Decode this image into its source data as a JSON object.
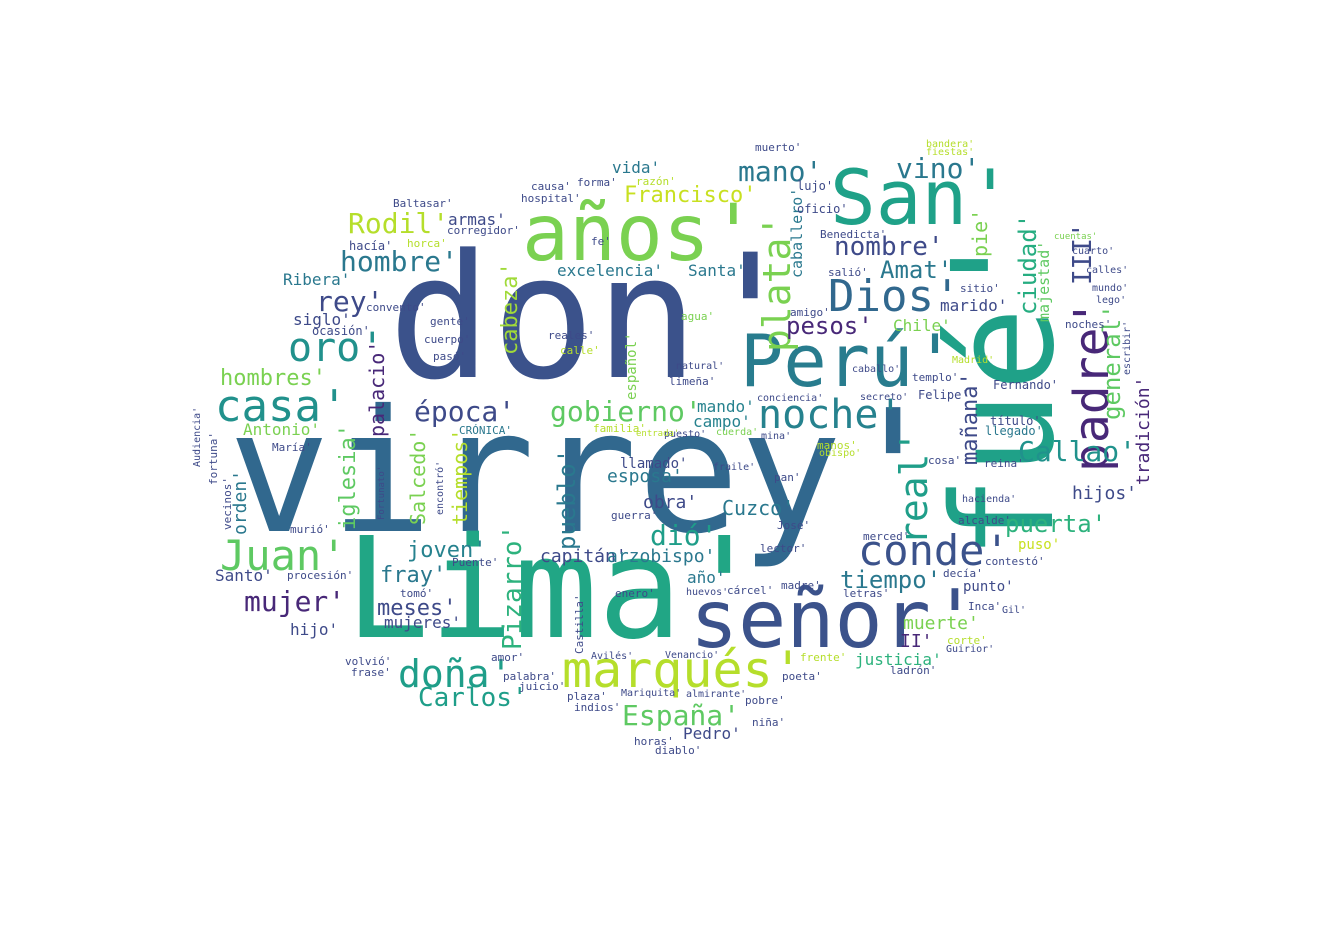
{
  "words": [
    {
      "text": "don'",
      "color": "#3b528b"
    },
    {
      "text": "virrey'",
      "color": "#31688e"
    },
    {
      "text": "Lima'",
      "color": "#21a685"
    },
    {
      "text": "fué'",
      "color": "#1fa188"
    },
    {
      "text": "señor'",
      "color": "#3b528b"
    },
    {
      "text": "San'",
      "color": "#1fa188"
    },
    {
      "text": "años'",
      "color": "#7ad151"
    },
    {
      "text": "Perú'",
      "color": "#287c8e"
    },
    {
      "text": "marqués'",
      "color": "#b5de2b"
    },
    {
      "text": "conde'",
      "color": "#3b528b"
    },
    {
      "text": "Juan'",
      "color": "#5ec962"
    },
    {
      "text": "casa'",
      "color": "#21918c"
    },
    {
      "text": "padre'",
      "color": "#482878"
    },
    {
      "text": "Dios'",
      "color": "#31688e"
    },
    {
      "text": "noche'",
      "color": "#26828e"
    },
    {
      "text": "doña'",
      "color": "#1f9e89"
    },
    {
      "text": "oro'",
      "color": "#21918c"
    },
    {
      "text": "plata'",
      "color": "#7ad151"
    },
    {
      "text": "real'",
      "color": "#1f9e89"
    },
    {
      "text": "época'",
      "color": "#3e4a89"
    },
    {
      "text": "gobierno'",
      "color": "#5ec962"
    },
    {
      "text": "Rodil'",
      "color": "#b5de2b"
    },
    {
      "text": "hombre'",
      "color": "#2a788e"
    },
    {
      "text": "mano'",
      "color": "#2a788e"
    },
    {
      "text": "vino'",
      "color": "#2a788e"
    },
    {
      "text": "nombre'",
      "color": "#3e4a89"
    },
    {
      "text": "rey'",
      "color": "#3e4a89"
    },
    {
      "text": "Callao'",
      "color": "#20928c"
    },
    {
      "text": "mujer'",
      "color": "#482878"
    },
    {
      "text": "Carlos'",
      "color": "#1f9e89"
    },
    {
      "text": "España'",
      "color": "#5ec962"
    },
    {
      "text": "Francisco'",
      "color": "#c8e020"
    },
    {
      "text": "III'",
      "color": "#3e4a89"
    },
    {
      "text": "ciudad'",
      "color": "#26ad81"
    },
    {
      "text": "general'",
      "color": "#5ec962"
    },
    {
      "text": "Amat'",
      "color": "#2a788e"
    },
    {
      "text": "pesos'",
      "color": "#482878"
    },
    {
      "text": "hombres'",
      "color": "#7ad151"
    },
    {
      "text": "Pizarro'",
      "color": "#2db27d"
    },
    {
      "text": "dió'",
      "color": "#1f9e89"
    },
    {
      "text": "pueblo'",
      "color": "#2a788e"
    },
    {
      "text": "cabeza'",
      "color": "#a0da39"
    },
    {
      "text": "iglesia'",
      "color": "#5ec962"
    },
    {
      "text": "tiempo'",
      "color": "#2a788e"
    },
    {
      "text": "puerta'",
      "color": "#2db27d"
    },
    {
      "text": "joven'",
      "color": "#26828e"
    },
    {
      "text": "fray'",
      "color": "#2a788e"
    },
    {
      "text": "meses'",
      "color": "#3e4a89"
    },
    {
      "text": "hijos'",
      "color": "#3e4a89"
    },
    {
      "text": "tradición'",
      "color": "#482878"
    },
    {
      "text": "muerte'",
      "color": "#7ad151"
    },
    {
      "text": "mañana'",
      "color": "#3e4a89"
    },
    {
      "text": "tiempos'",
      "color": "#b5de2b"
    },
    {
      "text": "Salcedo'",
      "color": "#7ad151"
    },
    {
      "text": "Cuzco'",
      "color": "#2a788e"
    },
    {
      "text": "palacio'",
      "color": "#482878"
    },
    {
      "text": "capitán'",
      "color": "#3e4a89"
    },
    {
      "text": "arzobispo'",
      "color": "#2a788e"
    },
    {
      "text": "esposa'",
      "color": "#2a788e"
    },
    {
      "text": "obra'",
      "color": "#3e4a89"
    },
    {
      "text": "excelencia'",
      "color": "#2a788e"
    },
    {
      "text": "Santa'",
      "color": "#2a788e"
    },
    {
      "text": "Chile'",
      "color": "#7ad151"
    },
    {
      "text": "caballero'",
      "color": "#2a788e"
    },
    {
      "text": "pie'",
      "color": "#7ad151"
    },
    {
      "text": "majestad'",
      "color": "#5ec962"
    },
    {
      "text": "marido'",
      "color": "#3e4a89"
    },
    {
      "text": "siglo'",
      "color": "#3e4a89"
    },
    {
      "text": "Ribera'",
      "color": "#2a788e"
    },
    {
      "text": "Antonio'",
      "color": "#7ad151"
    },
    {
      "text": "orden'",
      "color": "#2a788e"
    },
    {
      "text": "armas'",
      "color": "#3e4a89"
    },
    {
      "text": "vida'",
      "color": "#2a788e"
    },
    {
      "text": "mando'",
      "color": "#26828e"
    },
    {
      "text": "campo'",
      "color": "#26828e"
    },
    {
      "text": "Pedro'",
      "color": "#3e4a89"
    },
    {
      "text": "año'",
      "color": "#2a788e"
    },
    {
      "text": "justicia'",
      "color": "#2db27d"
    },
    {
      "text": "mujeres'",
      "color": "#3e4a89"
    },
    {
      "text": "hijo'",
      "color": "#3e4a89"
    },
    {
      "text": "Santo'",
      "color": "#3e4a89"
    },
    {
      "text": "puso'",
      "color": "#c8e020"
    },
    {
      "text": "punto'",
      "color": "#3e4a89"
    },
    {
      "text": "II'",
      "color": "#482878"
    },
    {
      "text": "llamado'",
      "color": "#3e4a89"
    },
    {
      "text": "Fernando'",
      "color": "#3e4a89"
    },
    {
      "text": "título'",
      "color": "#3e4a89"
    },
    {
      "text": "llegado'",
      "color": "#2a788e"
    },
    {
      "text": "Felipe'",
      "color": "#3e4a89"
    },
    {
      "text": "español'",
      "color": "#7ad151"
    },
    {
      "text": "lujo'",
      "color": "#3e4a89"
    },
    {
      "text": "oficio'",
      "color": "#3e4a89"
    },
    {
      "text": "muerto'",
      "color": "#3e4a89"
    },
    {
      "text": "hacía'",
      "color": "#3e4a89"
    },
    {
      "text": "corregidor'",
      "color": "#3e4a89"
    },
    {
      "text": "Baltasar'",
      "color": "#3e4a89"
    },
    {
      "text": "causa'",
      "color": "#3e4a89"
    },
    {
      "text": "forma'",
      "color": "#3e4a89"
    },
    {
      "text": "razón'",
      "color": "#b5de2b"
    },
    {
      "text": "hospital'",
      "color": "#3e4a89"
    },
    {
      "text": "fe'",
      "color": "#3e4a89"
    },
    {
      "text": "horca'",
      "color": "#b5de2b"
    },
    {
      "text": "convento'",
      "color": "#3e4a89"
    },
    {
      "text": "ocasión'",
      "color": "#3e4a89"
    },
    {
      "text": "gente'",
      "color": "#3e4a89"
    },
    {
      "text": "cuerpo'",
      "color": "#3e4a89"
    },
    {
      "text": "pasó'",
      "color": "#3e4a89"
    },
    {
      "text": "reales'",
      "color": "#3e4a89"
    },
    {
      "text": "calle'",
      "color": "#b5de2b"
    },
    {
      "text": "agua'",
      "color": "#7ad151"
    },
    {
      "text": "limeña'",
      "color": "#3e4a89"
    },
    {
      "text": "natural'",
      "color": "#3e4a89"
    },
    {
      "text": "familia'",
      "color": "#b5de2b"
    },
    {
      "text": "puesto'",
      "color": "#3e4a89"
    },
    {
      "text": "cuerda'",
      "color": "#7ad151"
    },
    {
      "text": "mina'",
      "color": "#3e4a89"
    },
    {
      "text": "conciencia'",
      "color": "#3e4a89"
    },
    {
      "text": "secreto'",
      "color": "#3e4a89"
    },
    {
      "text": "caballo'",
      "color": "#3e4a89"
    },
    {
      "text": "amigo'",
      "color": "#3e4a89"
    },
    {
      "text": "salió'",
      "color": "#3e4a89"
    },
    {
      "text": "Benedicta'",
      "color": "#3e4a89"
    },
    {
      "text": "sitio'",
      "color": "#3e4a89"
    },
    {
      "text": "noches'",
      "color": "#3e4a89"
    },
    {
      "text": "mundo'",
      "color": "#3e4a89"
    },
    {
      "text": "lego'",
      "color": "#3e4a89"
    },
    {
      "text": "calles'",
      "color": "#3e4a89"
    },
    {
      "text": "cuarto'",
      "color": "#3e4a89"
    },
    {
      "text": "cuentas'",
      "color": "#7ad151"
    },
    {
      "text": "templo'",
      "color": "#3e4a89"
    },
    {
      "text": "cosa'",
      "color": "#3e4a89"
    },
    {
      "text": "reina'",
      "color": "#3e4a89"
    },
    {
      "text": "alcalde'",
      "color": "#3e4a89"
    },
    {
      "text": "merced'",
      "color": "#3e4a89"
    },
    {
      "text": "decía'",
      "color": "#3e4a89"
    },
    {
      "text": "contestó'",
      "color": "#3e4a89"
    },
    {
      "text": "Inca'",
      "color": "#3e4a89"
    },
    {
      "text": "ladrón'",
      "color": "#3e4a89"
    },
    {
      "text": "poeta'",
      "color": "#3e4a89"
    },
    {
      "text": "pobre'",
      "color": "#3e4a89"
    },
    {
      "text": "niña'",
      "color": "#3e4a89"
    },
    {
      "text": "letras'",
      "color": "#3e4a89"
    },
    {
      "text": "madre'",
      "color": "#3e4a89"
    },
    {
      "text": "cárcel'",
      "color": "#3e4a89"
    },
    {
      "text": "lector'",
      "color": "#3e4a89"
    },
    {
      "text": "José'",
      "color": "#3e4a89"
    },
    {
      "text": "pan'",
      "color": "#3e4a89"
    },
    {
      "text": "fraile'",
      "color": "#3e4a89"
    },
    {
      "text": "enero'",
      "color": "#3e4a89"
    },
    {
      "text": "guerra'",
      "color": "#3e4a89"
    },
    {
      "text": "huevos'",
      "color": "#3e4a89"
    },
    {
      "text": "Venancio'",
      "color": "#3e4a89"
    },
    {
      "text": "almirante'",
      "color": "#3e4a89"
    },
    {
      "text": "Mariquita'",
      "color": "#3e4a89"
    },
    {
      "text": "plaza'",
      "color": "#3e4a89"
    },
    {
      "text": "indios'",
      "color": "#3e4a89"
    },
    {
      "text": "horas'",
      "color": "#3e4a89"
    },
    {
      "text": "diablo'",
      "color": "#3e4a89"
    },
    {
      "text": "palabra'",
      "color": "#3e4a89"
    },
    {
      "text": "juicio'",
      "color": "#3e4a89"
    },
    {
      "text": "amor'",
      "color": "#3e4a89"
    },
    {
      "text": "Puente'",
      "color": "#3e4a89"
    },
    {
      "text": "Avilés'",
      "color": "#3e4a89"
    },
    {
      "text": "procesión'",
      "color": "#3e4a89"
    },
    {
      "text": "tomó'",
      "color": "#3e4a89"
    },
    {
      "text": "volvió'",
      "color": "#3e4a89"
    },
    {
      "text": "frase'",
      "color": "#3e4a89"
    },
    {
      "text": "María'",
      "color": "#3e4a89"
    },
    {
      "text": "vecinos'",
      "color": "#3e4a89"
    },
    {
      "text": "fortuna'",
      "color": "#3e4a89"
    },
    {
      "text": "Audiencia'",
      "color": "#3e4a89"
    },
    {
      "text": "murió'",
      "color": "#3e4a89"
    },
    {
      "text": "CRÓNICA'",
      "color": "#2a788e"
    },
    {
      "text": "Gil'",
      "color": "#3e4a89"
    },
    {
      "text": "Guirior'",
      "color": "#3e4a89"
    },
    {
      "text": "hacienda'",
      "color": "#3e4a89"
    },
    {
      "text": "escribir'",
      "color": "#3e4a89"
    },
    {
      "text": "Castilla'",
      "color": "#3e4a89"
    },
    {
      "text": "Fortunato'",
      "color": "#3e4a89"
    },
    {
      "text": "encontró'",
      "color": "#3e4a89"
    },
    {
      "text": "frente'",
      "color": "#b5de2b"
    },
    {
      "text": "corte'",
      "color": "#b5de2b"
    },
    {
      "text": "entrada'",
      "color": "#b5de2b"
    },
    {
      "text": "manos'",
      "color": "#b5de2b"
    },
    {
      "text": "obispo'",
      "color": "#b5de2b"
    },
    {
      "text": "Madrid'",
      "color": "#b5de2b"
    },
    {
      "text": "bandera'",
      "color": "#b5de2b"
    },
    {
      "text": "fiestas'",
      "color": "#b5de2b"
    }
  ]
}
